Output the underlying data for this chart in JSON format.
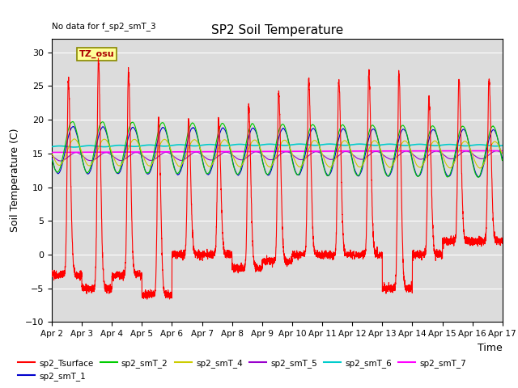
{
  "title": "SP2 Soil Temperature",
  "xlabel": "Time",
  "ylabel": "Soil Temperature (C)",
  "no_data_label": "No data for f_sp2_smT_3",
  "tz_label": "TZ_osu",
  "ylim": [
    -10,
    32
  ],
  "yticks": [
    -10,
    -5,
    0,
    5,
    10,
    15,
    20,
    25,
    30
  ],
  "x_tick_labels": [
    "Apr 2",
    "Apr 3",
    "Apr 4",
    "Apr 5",
    "Apr 6",
    "Apr 7",
    "Apr 8",
    "Apr 9",
    "Apr 10",
    "Apr 11",
    "Apr 12",
    "Apr 13",
    "Apr 14",
    "Apr 15",
    "Apr 16",
    "Apr 17"
  ],
  "bg_color": "#dcdcdc",
  "series_colors": {
    "sp2_Tsurface": "#ff0000",
    "sp2_smT_1": "#0000cc",
    "sp2_smT_2": "#00cc00",
    "sp2_smT_4": "#cccc00",
    "sp2_smT_5": "#9900cc",
    "sp2_smT_6": "#00cccc",
    "sp2_smT_7": "#ff00ff"
  }
}
